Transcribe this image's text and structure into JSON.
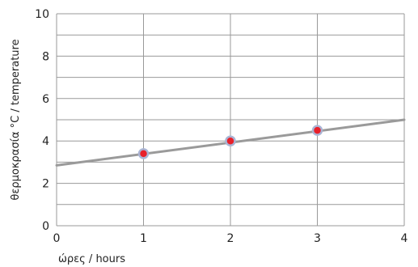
{
  "chart_data": {
    "type": "scatter",
    "xlabel": "ώρες / hours",
    "ylabel": "θερμοκρασία °C / temperature",
    "xlim": [
      0,
      4
    ],
    "ylim": [
      0,
      10
    ],
    "x_ticks": [
      0,
      1,
      2,
      3,
      4
    ],
    "y_ticks": [
      0,
      2,
      4,
      6,
      8,
      10
    ],
    "minor_y_step": 1,
    "grid": true,
    "points": [
      {
        "x": 1,
        "y": 3.4
      },
      {
        "x": 2,
        "y": 4.0
      },
      {
        "x": 3,
        "y": 4.5
      }
    ],
    "trend_line": [
      {
        "x": 0,
        "y": 2.85
      },
      {
        "x": 4,
        "y": 5.0
      }
    ],
    "colors": {
      "grid": "#999999",
      "trend_line": "#9a9a9a",
      "point_fill": "#e8202a",
      "point_stroke": "#aab4d4"
    }
  }
}
